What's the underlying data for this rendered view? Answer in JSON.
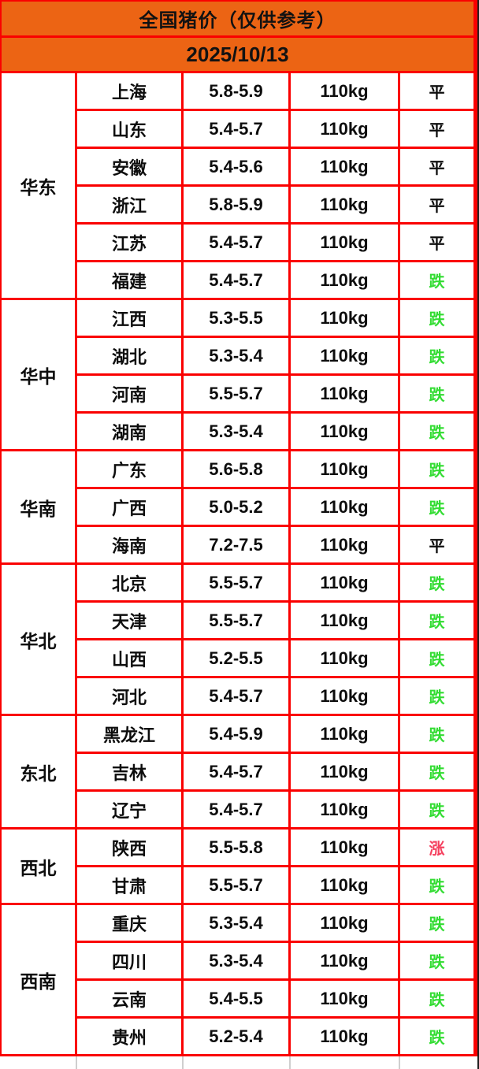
{
  "header": {
    "title": "全国猪价（仅供参考）",
    "date": "2025/10/13"
  },
  "colors": {
    "header_orange": "#EC6414",
    "border_red": "#FA0000",
    "status_down_green": "#32DC32",
    "status_up_pink": "#F5415F",
    "status_flat_black": "#0D0D0D"
  },
  "table": {
    "weight_label": "110kg",
    "regions": [
      {
        "name": "华东",
        "rows": [
          {
            "province": "上海",
            "price": "5.8-5.9",
            "weight": "110kg",
            "status": "平",
            "status_type": "flat"
          },
          {
            "province": "山东",
            "price": "5.4-5.7",
            "weight": "110kg",
            "status": "平",
            "status_type": "flat"
          },
          {
            "province": "安徽",
            "price": "5.4-5.6",
            "weight": "110kg",
            "status": "平",
            "status_type": "flat"
          },
          {
            "province": "浙江",
            "price": "5.8-5.9",
            "weight": "110kg",
            "status": "平",
            "status_type": "flat"
          },
          {
            "province": "江苏",
            "price": "5.4-5.7",
            "weight": "110kg",
            "status": "平",
            "status_type": "flat"
          },
          {
            "province": "福建",
            "price": "5.4-5.7",
            "weight": "110kg",
            "status": "跌",
            "status_type": "down"
          }
        ]
      },
      {
        "name": "华中",
        "rows": [
          {
            "province": "江西",
            "price": "5.3-5.5",
            "weight": "110kg",
            "status": "跌",
            "status_type": "down"
          },
          {
            "province": "湖北",
            "price": "5.3-5.4",
            "weight": "110kg",
            "status": "跌",
            "status_type": "down"
          },
          {
            "province": "河南",
            "price": "5.5-5.7",
            "weight": "110kg",
            "status": "跌",
            "status_type": "down"
          },
          {
            "province": "湖南",
            "price": "5.3-5.4",
            "weight": "110kg",
            "status": "跌",
            "status_type": "down"
          }
        ]
      },
      {
        "name": "华南",
        "rows": [
          {
            "province": "广东",
            "price": "5.6-5.8",
            "weight": "110kg",
            "status": "跌",
            "status_type": "down"
          },
          {
            "province": "广西",
            "price": "5.0-5.2",
            "weight": "110kg",
            "status": "跌",
            "status_type": "down"
          },
          {
            "province": "海南",
            "price": "7.2-7.5",
            "weight": "110kg",
            "status": "平",
            "status_type": "flat"
          }
        ]
      },
      {
        "name": "华北",
        "rows": [
          {
            "province": "北京",
            "price": "5.5-5.7",
            "weight": "110kg",
            "status": "跌",
            "status_type": "down"
          },
          {
            "province": "天津",
            "price": "5.5-5.7",
            "weight": "110kg",
            "status": "跌",
            "status_type": "down"
          },
          {
            "province": "山西",
            "price": "5.2-5.5",
            "weight": "110kg",
            "status": "跌",
            "status_type": "down"
          },
          {
            "province": "河北",
            "price": "5.4-5.7",
            "weight": "110kg",
            "status": "跌",
            "status_type": "down"
          }
        ]
      },
      {
        "name": "东北",
        "rows": [
          {
            "province": "黑龙江",
            "price": "5.4-5.9",
            "weight": "110kg",
            "status": "跌",
            "status_type": "down"
          },
          {
            "province": "吉林",
            "price": "5.4-5.7",
            "weight": "110kg",
            "status": "跌",
            "status_type": "down"
          },
          {
            "province": "辽宁",
            "price": "5.4-5.7",
            "weight": "110kg",
            "status": "跌",
            "status_type": "down"
          }
        ]
      },
      {
        "name": "西北",
        "rows": [
          {
            "province": "陕西",
            "price": "5.5-5.8",
            "weight": "110kg",
            "status": "涨",
            "status_type": "up"
          },
          {
            "province": "甘肃",
            "price": "5.5-5.7",
            "weight": "110kg",
            "status": "跌",
            "status_type": "down"
          }
        ]
      },
      {
        "name": "西南",
        "rows": [
          {
            "province": "重庆",
            "price": "5.3-5.4",
            "weight": "110kg",
            "status": "跌",
            "status_type": "down"
          },
          {
            "province": "四川",
            "price": "5.3-5.4",
            "weight": "110kg",
            "status": "跌",
            "status_type": "down"
          },
          {
            "province": "云南",
            "price": "5.4-5.5",
            "weight": "110kg",
            "status": "跌",
            "status_type": "down"
          },
          {
            "province": "贵州",
            "price": "5.2-5.4",
            "weight": "110kg",
            "status": "跌",
            "status_type": "down"
          }
        ]
      }
    ]
  },
  "chart_data": {
    "type": "table",
    "title": "全国猪价（仅供参考）",
    "subtitle": "2025/10/13",
    "rows": [
      [
        "华东",
        "上海",
        "5.8-5.9",
        "110kg",
        "平"
      ],
      [
        "华东",
        "山东",
        "5.4-5.7",
        "110kg",
        "平"
      ],
      [
        "华东",
        "安徽",
        "5.4-5.6",
        "110kg",
        "平"
      ],
      [
        "华东",
        "浙江",
        "5.8-5.9",
        "110kg",
        "平"
      ],
      [
        "华东",
        "江苏",
        "5.4-5.7",
        "110kg",
        "平"
      ],
      [
        "华东",
        "福建",
        "5.4-5.7",
        "110kg",
        "跌"
      ],
      [
        "华中",
        "江西",
        "5.3-5.5",
        "110kg",
        "跌"
      ],
      [
        "华中",
        "湖北",
        "5.3-5.4",
        "110kg",
        "跌"
      ],
      [
        "华中",
        "河南",
        "5.5-5.7",
        "110kg",
        "跌"
      ],
      [
        "华中",
        "湖南",
        "5.3-5.4",
        "110kg",
        "跌"
      ],
      [
        "华南",
        "广东",
        "5.6-5.8",
        "110kg",
        "跌"
      ],
      [
        "华南",
        "广西",
        "5.0-5.2",
        "110kg",
        "跌"
      ],
      [
        "华南",
        "海南",
        "7.2-7.5",
        "110kg",
        "平"
      ],
      [
        "华北",
        "北京",
        "5.5-5.7",
        "110kg",
        "跌"
      ],
      [
        "华北",
        "天津",
        "5.5-5.7",
        "110kg",
        "跌"
      ],
      [
        "华北",
        "山西",
        "5.2-5.5",
        "110kg",
        "跌"
      ],
      [
        "华北",
        "河北",
        "5.4-5.7",
        "110kg",
        "跌"
      ],
      [
        "东北",
        "黑龙江",
        "5.4-5.9",
        "110kg",
        "跌"
      ],
      [
        "东北",
        "吉林",
        "5.4-5.7",
        "110kg",
        "跌"
      ],
      [
        "东北",
        "辽宁",
        "5.4-5.7",
        "110kg",
        "跌"
      ],
      [
        "西北",
        "陕西",
        "5.5-5.8",
        "110kg",
        "涨"
      ],
      [
        "西北",
        "甘肃",
        "5.5-5.7",
        "110kg",
        "跌"
      ],
      [
        "西南",
        "重庆",
        "5.3-5.4",
        "110kg",
        "跌"
      ],
      [
        "西南",
        "四川",
        "5.3-5.4",
        "110kg",
        "跌"
      ],
      [
        "西南",
        "云南",
        "5.4-5.5",
        "110kg",
        "跌"
      ],
      [
        "西南",
        "贵州",
        "5.2-5.4",
        "110kg",
        "跌"
      ]
    ]
  }
}
